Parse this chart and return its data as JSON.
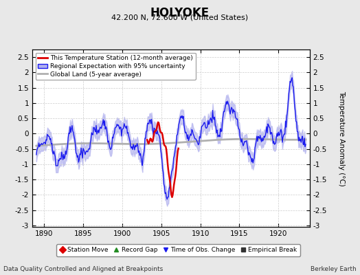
{
  "title": "HOLYOKE",
  "subtitle": "42.200 N, 72.600 W (United States)",
  "xlabel_bottom": "Data Quality Controlled and Aligned at Breakpoints",
  "xlabel_right": "Berkeley Earth",
  "ylabel": "Temperature Anomaly (°C)",
  "xlim": [
    1888.5,
    1924.0
  ],
  "ylim": [
    -3.05,
    2.75
  ],
  "yticks": [
    -3,
    -2.5,
    -2,
    -1.5,
    -1,
    -0.5,
    0,
    0.5,
    1,
    1.5,
    2,
    2.5
  ],
  "xticks": [
    1890,
    1895,
    1900,
    1905,
    1910,
    1915,
    1920
  ],
  "bg_color": "#e8e8e8",
  "plot_bg_color": "#ffffff",
  "regional_color": "#1a1aee",
  "regional_fill_color": "#b0b0ee",
  "station_color": "#dd0000",
  "global_color": "#b0b0b0",
  "legend_items": [
    {
      "label": "This Temperature Station (12-month average)",
      "color": "#dd0000"
    },
    {
      "label": "Regional Expectation with 95% uncertainty",
      "color": "#1a1aee",
      "fill": "#b0b0ee"
    },
    {
      "label": "Global Land (5-year average)",
      "color": "#b0b0b0"
    }
  ],
  "bottom_legend": [
    {
      "label": "Station Move",
      "marker": "D",
      "color": "#dd0000"
    },
    {
      "label": "Record Gap",
      "marker": "^",
      "color": "#228B22"
    },
    {
      "label": "Time of Obs. Change",
      "marker": "v",
      "color": "#1a1aee"
    },
    {
      "label": "Empirical Break",
      "marker": "s",
      "color": "#333333"
    }
  ]
}
